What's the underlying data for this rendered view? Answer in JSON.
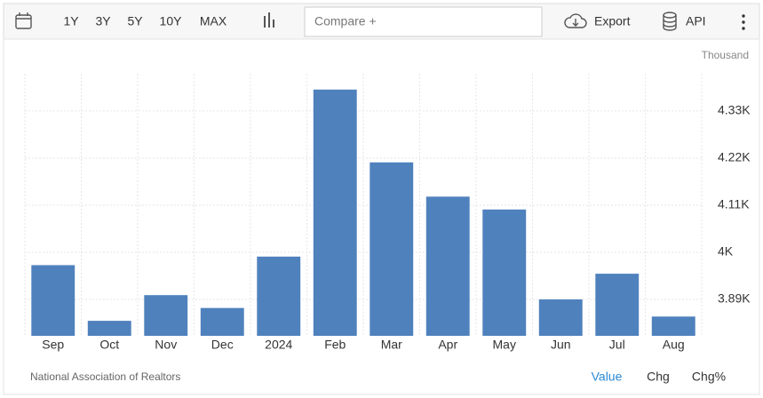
{
  "toolbar": {
    "ranges": [
      "1Y",
      "3Y",
      "5Y",
      "10Y",
      "MAX"
    ],
    "compare": "Compare +",
    "export": "Export",
    "api": "API"
  },
  "chart_data": {
    "type": "bar",
    "unit_label": "Thousand",
    "categories": [
      "Sep",
      "Oct",
      "Nov",
      "Dec",
      "2024",
      "Feb",
      "Mar",
      "Apr",
      "May",
      "Jun",
      "Jul",
      "Aug"
    ],
    "values": [
      3970,
      3840,
      3900,
      3870,
      3990,
      4380,
      4210,
      4130,
      4100,
      3890,
      3950,
      3850
    ],
    "color": "#4f81bd",
    "ylim": [
      3805,
      4417
    ],
    "yticks": [
      {
        "value": 3890,
        "label": "3.89K"
      },
      {
        "value": 4000,
        "label": "4K"
      },
      {
        "value": 4110,
        "label": "4.11K"
      },
      {
        "value": 4220,
        "label": "4.22K"
      },
      {
        "value": 4330,
        "label": "4.33K"
      }
    ],
    "grid": true
  },
  "footer": {
    "source": "National Association of Realtors",
    "modes": [
      "Value",
      "Chg",
      "Chg%"
    ]
  }
}
